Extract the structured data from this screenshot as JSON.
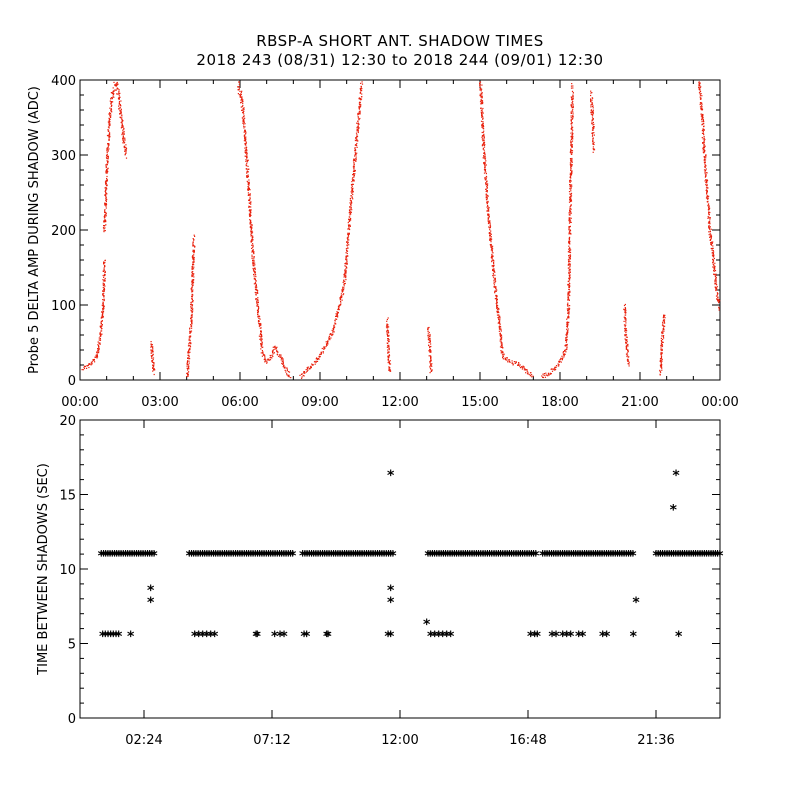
{
  "title_line1": "RBSP-A SHORT ANT. SHADOW TIMES",
  "title_line2": "2018 243 (08/31) 12:30 to 2018 244 (09/01) 12:30",
  "chart_data": [
    {
      "type": "scatter",
      "ylabel": "Probe 5 DELTA AMP DURING SHADOW (ADC)",
      "xlim": [
        0,
        24
      ],
      "ylim": [
        0,
        400
      ],
      "x_ticks": [
        0,
        3,
        6,
        9,
        12,
        15,
        18,
        21,
        24
      ],
      "x_tick_labels": [
        "00:00",
        "03:00",
        "06:00",
        "09:00",
        "12:00",
        "15:00",
        "18:00",
        "21:00",
        "00:00"
      ],
      "y_ticks": [
        0,
        100,
        200,
        300,
        400
      ],
      "y_tick_labels": [
        "0",
        "100",
        "200",
        "300",
        "400"
      ],
      "color": "#e8200c",
      "series": [
        {
          "x": [
            0.0,
            0.3,
            0.6,
            0.75,
            0.85,
            0.9
          ],
          "y": [
            15,
            20,
            30,
            60,
            100,
            160
          ]
        },
        {
          "x": [
            0.9,
            1.0,
            1.1,
            1.2,
            1.35,
            1.5,
            1.7
          ],
          "y": [
            200,
            300,
            350,
            380,
            400,
            360,
            300
          ]
        },
        {
          "x": [
            2.65,
            2.7,
            2.75
          ],
          "y": [
            50,
            30,
            10
          ]
        },
        {
          "x": [
            4.0,
            4.15,
            4.25
          ],
          "y": [
            5,
            80,
            190
          ]
        },
        {
          "x": [
            5.9,
            6.1,
            6.3,
            6.5,
            6.7,
            6.8,
            6.95,
            7.1,
            7.3,
            7.5,
            7.7,
            7.85
          ],
          "y": [
            400,
            360,
            260,
            150,
            80,
            40,
            25,
            30,
            45,
            30,
            15,
            5
          ]
        },
        {
          "x": [
            8.25,
            8.5,
            8.8,
            9.2,
            9.5,
            9.9,
            10.1,
            10.3,
            10.45,
            10.55
          ],
          "y": [
            5,
            15,
            25,
            45,
            70,
            130,
            220,
            300,
            360,
            400
          ]
        },
        {
          "x": [
            11.5,
            11.55,
            11.6
          ],
          "y": [
            80,
            40,
            10
          ]
        },
        {
          "x": [
            13.05,
            13.1,
            13.15
          ],
          "y": [
            70,
            40,
            10
          ]
        },
        {
          "x": [
            15.0,
            15.1,
            15.3,
            15.5,
            15.7,
            15.8,
            15.9,
            16.1,
            16.5,
            16.8,
            16.95
          ],
          "y": [
            400,
            320,
            220,
            140,
            80,
            40,
            30,
            25,
            20,
            10,
            5
          ]
        },
        {
          "x": [
            17.3,
            17.6,
            17.9,
            18.05,
            18.2,
            18.3,
            18.35,
            18.4,
            18.45
          ],
          "y": [
            5,
            10,
            20,
            30,
            40,
            100,
            200,
            300,
            390
          ]
        },
        {
          "x": [
            19.15,
            19.2,
            19.25
          ],
          "y": [
            380,
            350,
            310
          ]
        },
        {
          "x": [
            20.4,
            20.45,
            20.55
          ],
          "y": [
            100,
            60,
            20
          ]
        },
        {
          "x": [
            21.75,
            21.8,
            21.9
          ],
          "y": [
            10,
            50,
            90
          ]
        },
        {
          "x": [
            23.2,
            23.3,
            23.4,
            23.5,
            23.6,
            23.7,
            23.85,
            24.0
          ],
          "y": [
            400,
            360,
            300,
            250,
            200,
            170,
            120,
            90
          ]
        }
      ]
    },
    {
      "type": "scatter",
      "ylabel": "TIME BETWEEN SHADOWS (SEC)",
      "xlim": [
        0,
        24
      ],
      "ylim": [
        0,
        20
      ],
      "x_ticks": [
        2.4,
        7.2,
        12.0,
        16.8,
        21.6
      ],
      "x_tick_labels": [
        "02:24",
        "07:12",
        "12:00",
        "16:48",
        "21:36"
      ],
      "y_ticks": [
        0,
        5,
        10,
        15,
        20
      ],
      "y_tick_labels": [
        "0",
        "5",
        "10",
        "15",
        "20"
      ],
      "marker": "*",
      "bands": [
        {
          "y": 10.9,
          "x_start": 0.8,
          "x_end": 2.8
        },
        {
          "y": 10.9,
          "x_start": 4.1,
          "x_end": 8.0
        },
        {
          "y": 10.9,
          "x_start": 8.35,
          "x_end": 11.8
        },
        {
          "y": 10.9,
          "x_start": 13.05,
          "x_end": 17.1
        },
        {
          "y": 10.9,
          "x_start": 17.35,
          "x_end": 20.75
        },
        {
          "y": 10.9,
          "x_start": 21.6,
          "x_end": 24.0
        }
      ],
      "points": [
        {
          "x": [
            0.85,
            0.95,
            1.05,
            1.15,
            1.25,
            1.35,
            1.45
          ],
          "y": [
            5.5,
            5.5,
            5.5,
            5.5,
            5.5,
            5.5,
            5.5
          ]
        },
        {
          "x": [
            1.9,
            2.65,
            2.65
          ],
          "y": [
            5.5,
            8.6,
            7.8
          ]
        },
        {
          "x": [
            4.3,
            4.45,
            4.6,
            4.75,
            4.9,
            5.05
          ],
          "y": [
            5.5,
            5.5,
            5.5,
            5.5,
            5.5,
            5.5
          ]
        },
        {
          "x": [
            6.6,
            6.65,
            7.3,
            7.5,
            7.65,
            8.4,
            8.5,
            9.25,
            9.3
          ],
          "y": [
            5.5,
            5.5,
            5.5,
            5.5,
            5.5,
            5.5,
            5.5,
            5.5,
            5.5
          ]
        },
        {
          "x": [
            11.55,
            11.65,
            11.65,
            11.65,
            11.65
          ],
          "y": [
            5.5,
            16.3,
            8.6,
            7.8,
            5.5
          ]
        },
        {
          "x": [
            13.0,
            13.15,
            13.3,
            13.45,
            13.6,
            13.75,
            13.9
          ],
          "y": [
            6.3,
            5.5,
            5.5,
            5.5,
            5.5,
            5.5,
            5.5
          ]
        },
        {
          "x": [
            16.9,
            17.05,
            17.15,
            17.7,
            17.85,
            18.1,
            18.25,
            18.4,
            18.7,
            18.85,
            19.6,
            19.75
          ],
          "y": [
            5.5,
            5.5,
            5.5,
            5.5,
            5.5,
            5.5,
            5.5,
            5.5,
            5.5,
            5.5,
            5.5,
            5.5
          ]
        },
        {
          "x": [
            20.75,
            20.85
          ],
          "y": [
            5.5,
            7.8
          ]
        },
        {
          "x": [
            22.25,
            22.35,
            22.45
          ],
          "y": [
            14.0,
            16.3,
            5.5
          ]
        }
      ]
    }
  ]
}
